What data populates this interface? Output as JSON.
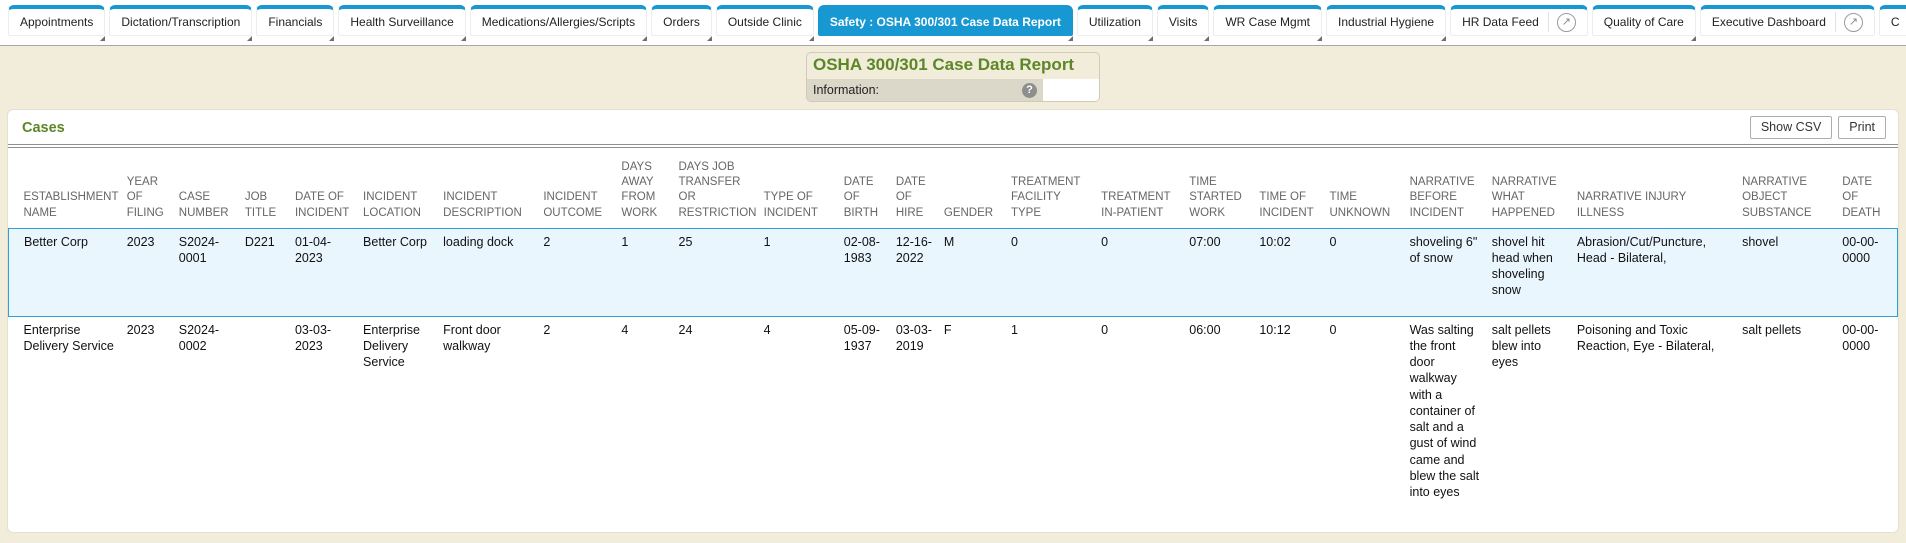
{
  "icons": {
    "popout": "↗",
    "help": "?"
  },
  "colors": {
    "accent_blue": "#1898d2",
    "title_green": "#5c8727",
    "page_bg": "#f2edda",
    "selected_row_bg": "#eaf6fd"
  },
  "tabs": [
    {
      "label": "Appointments",
      "menu": true
    },
    {
      "label": "Dictation/Transcription",
      "menu": true
    },
    {
      "label": "Financials",
      "menu": true
    },
    {
      "label": "Health Surveillance",
      "menu": true
    },
    {
      "label": "Medications/Allergies/Scripts",
      "menu": true
    },
    {
      "label": "Orders",
      "menu": true
    },
    {
      "label": "Outside Clinic",
      "menu": true
    },
    {
      "label": "Safety : OSHA 300/301 Case Data Report",
      "menu": true,
      "active": true
    },
    {
      "label": "Utilization",
      "menu": true
    },
    {
      "label": "Visits",
      "menu": true
    },
    {
      "label": "WR Case Mgmt",
      "menu": true
    },
    {
      "label": "Industrial Hygiene",
      "menu": true
    },
    {
      "label": "HR Data Feed",
      "popout": true
    },
    {
      "label": "Quality of Care",
      "menu": true
    },
    {
      "label": "Executive Dashboard",
      "popout": true
    },
    {
      "label": "C",
      "partial": true
    }
  ],
  "report": {
    "title": "OSHA 300/301 Case Data Report",
    "info_label": "Information:"
  },
  "cases": {
    "section_title": "Cases",
    "buttons": {
      "show_csv": "Show CSV",
      "print": "Print"
    },
    "table": {
      "columns": [
        "ESTABLISHMENT NAME",
        "YEAR OF FILING",
        "CASE NUMBER",
        "JOB TITLE",
        "DATE OF INCIDENT",
        "INCIDENT LOCATION",
        "INCIDENT DESCRIPTION",
        "INCIDENT OUTCOME",
        "DAYS AWAY FROM WORK",
        "DAYS JOB TRANSFER OR RESTRICTION",
        "TYPE OF INCIDENT",
        "DATE OF BIRTH",
        "DATE OF HIRE",
        "GENDER",
        "TREATMENT FACILITY TYPE",
        "TREATMENT IN-PATIENT",
        "TIME STARTED WORK",
        "TIME OF INCIDENT",
        "TIME UNKNOWN",
        "NARRATIVE BEFORE INCIDENT",
        "NARRATIVE WHAT HAPPENED",
        "NARRATIVE INJURY ILLNESS",
        "NARRATIVE OBJECT SUBSTANCE",
        "DATE OF DEATH"
      ],
      "rows": [
        {
          "selected": true,
          "cells": [
            "Better Corp",
            "2023",
            "S2024-0001",
            "D221",
            "01-04-2023",
            "Better Corp",
            "loading dock",
            "2",
            "1",
            "25",
            "1",
            "02-08-1983",
            "12-16-2022",
            "M",
            "0",
            "0",
            "07:00",
            "10:02",
            "0",
            "shoveling 6\" of snow",
            "shovel hit head when shoveling snow",
            "Abrasion/Cut/Puncture, Head - Bilateral,",
            "shovel",
            "00-00-0000"
          ]
        },
        {
          "selected": false,
          "cells": [
            "Enterprise Delivery Service",
            "2023",
            "S2024-0002",
            "",
            "03-03-2023",
            "Enterprise Delivery Service",
            "Front door walkway",
            "2",
            "4",
            "24",
            "4",
            "05-09-1937",
            "03-03-2019",
            "F",
            "1",
            "0",
            "06:00",
            "10:12",
            "0",
            "Was salting the front door walkway with a container of salt and a gust of wind came and blew the salt into eyes",
            "salt pellets blew into eyes",
            "Poisoning and Toxic Reaction, Eye - Bilateral,",
            "salt pellets",
            "00-00-0000"
          ]
        }
      ]
    }
  }
}
